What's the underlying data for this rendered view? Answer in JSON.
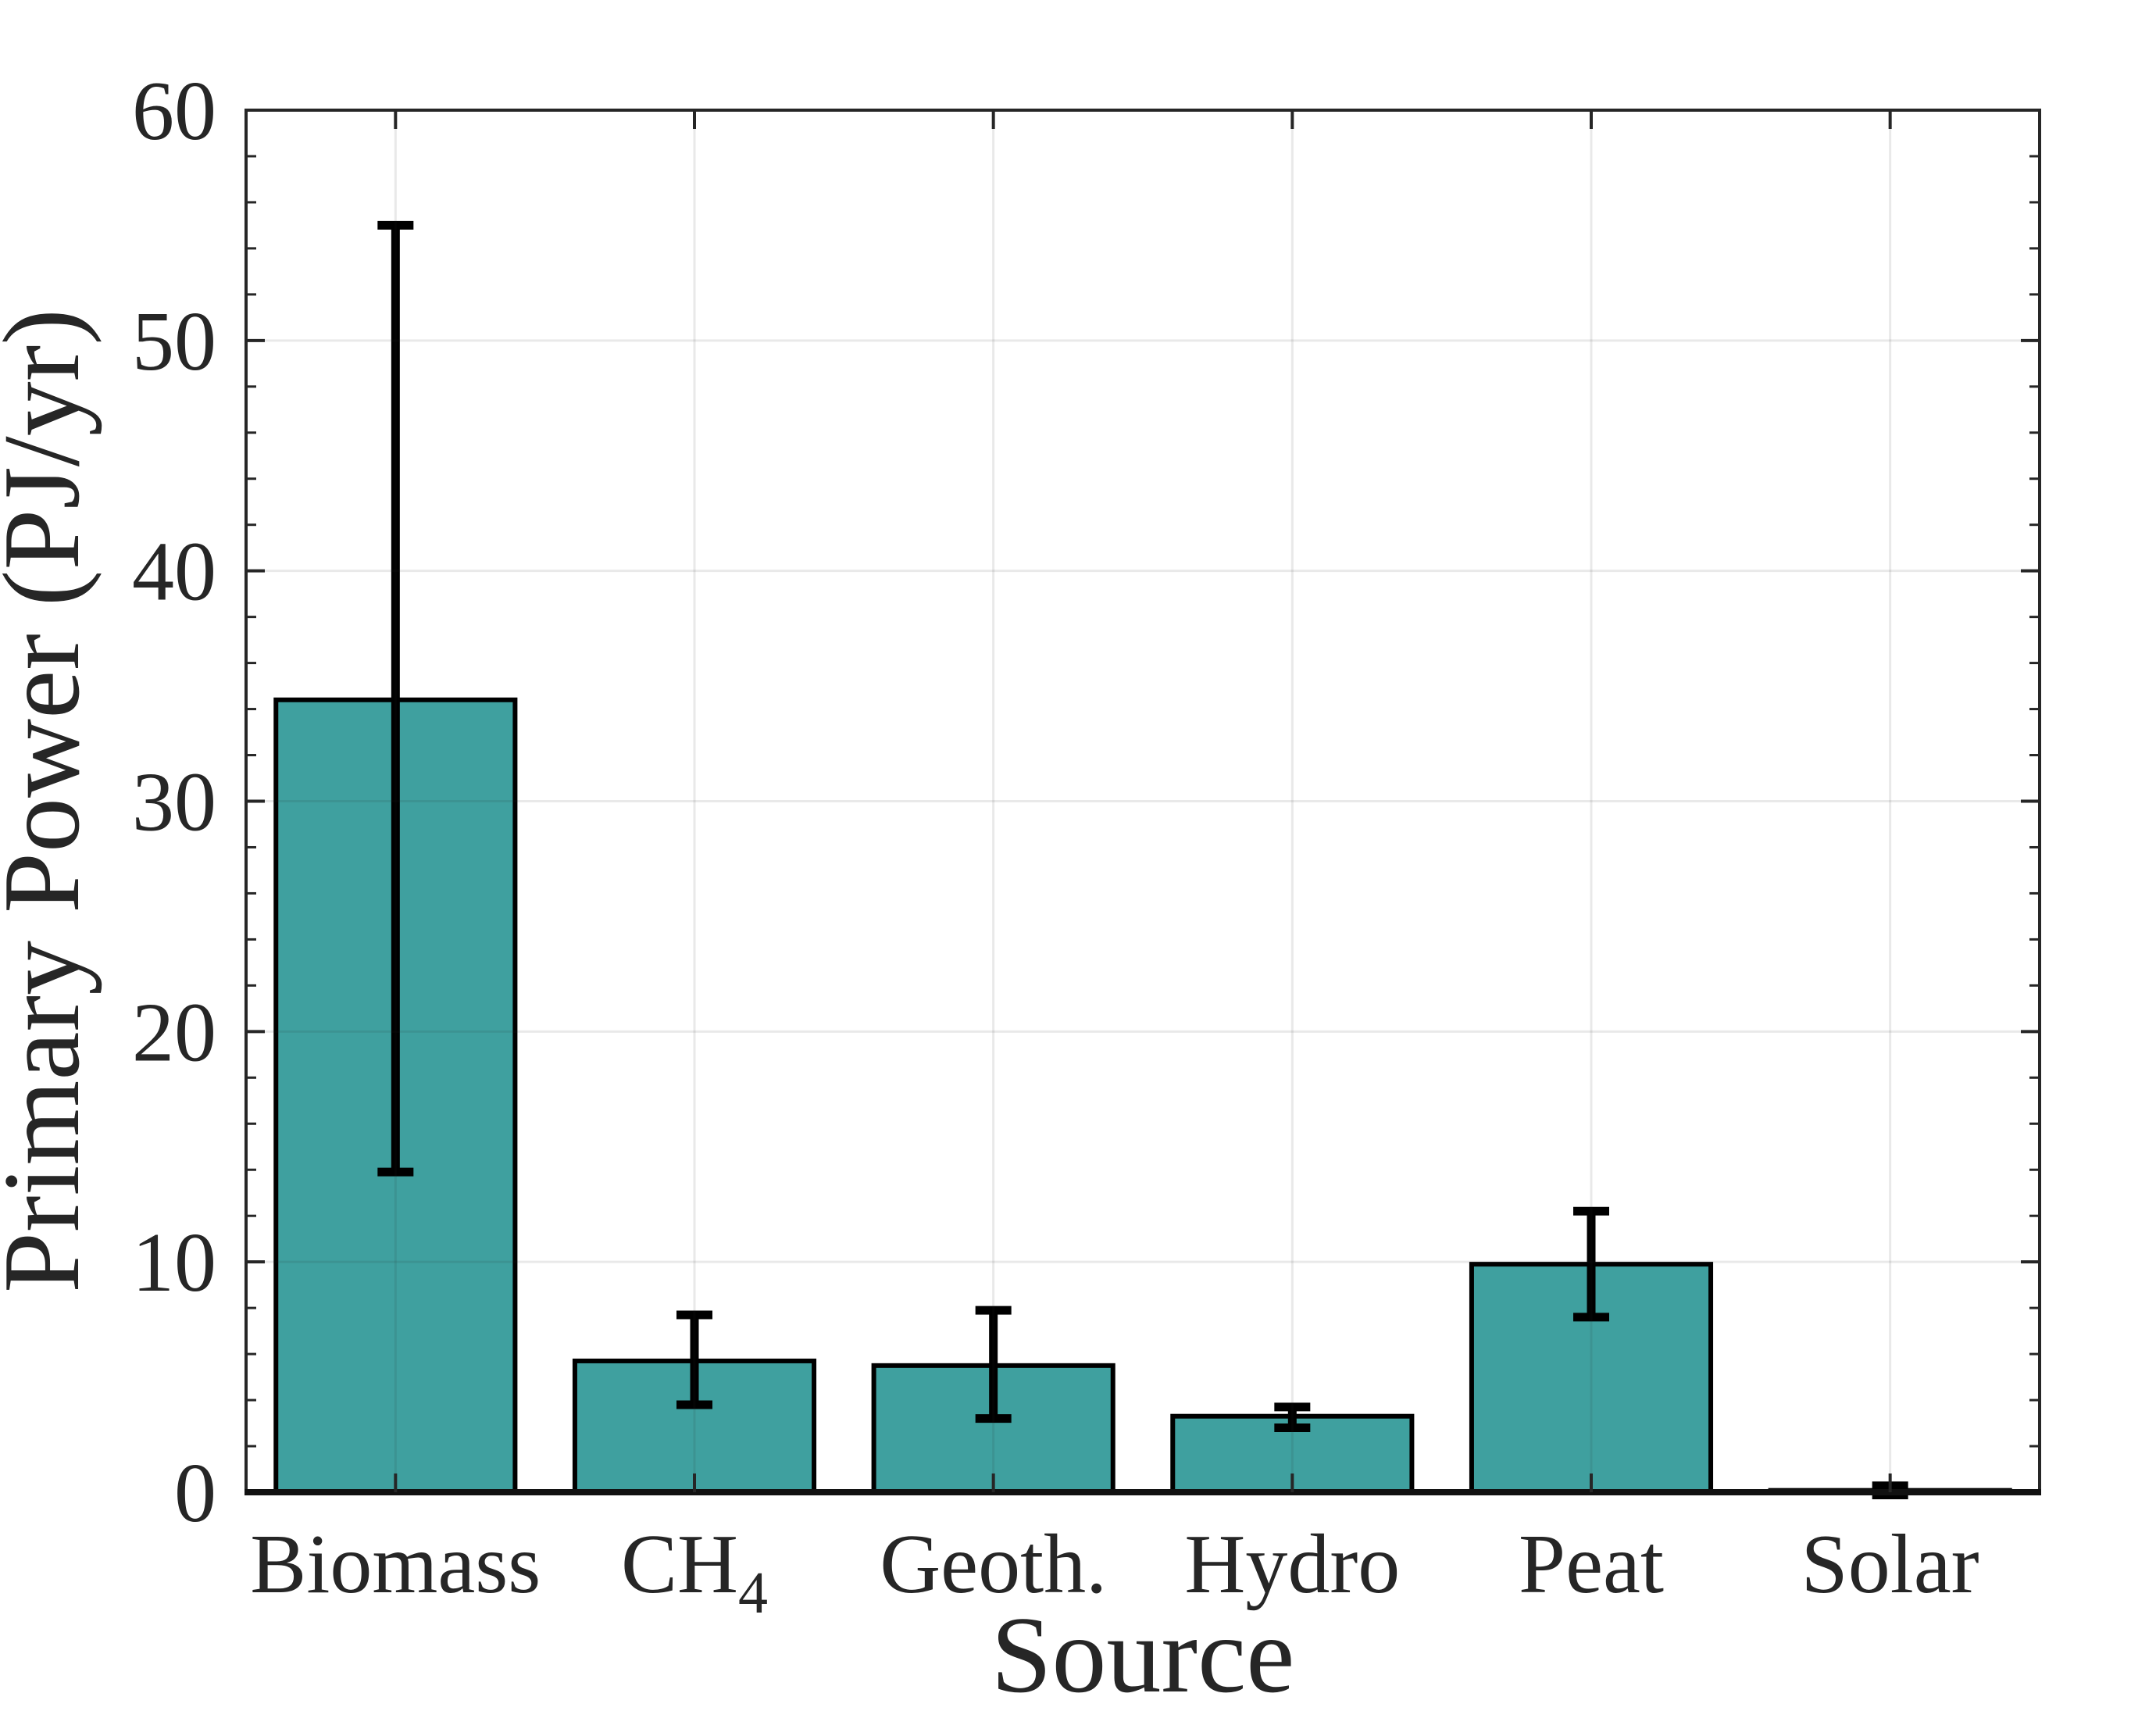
{
  "figure": {
    "background": "#FFFFFF"
  },
  "chart_data": {
    "type": "bar",
    "title": "",
    "xlabel": "Source",
    "ylabel": "Primary Power (PJ/yr)",
    "categories": [
      "Biomass",
      "CH4",
      "Geoth.",
      "Hydro",
      "Peat",
      "Solar"
    ],
    "category_label_parts": [
      [
        {
          "t": "Biomass",
          "sub": false
        }
      ],
      [
        {
          "t": "CH",
          "sub": false
        },
        {
          "t": "4",
          "sub": true
        }
      ],
      [
        {
          "t": "Geoth.",
          "sub": false
        }
      ],
      [
        {
          "t": "Hydro",
          "sub": false
        }
      ],
      [
        {
          "t": "Peat",
          "sub": false
        }
      ],
      [
        {
          "t": "Solar",
          "sub": false
        }
      ]
    ],
    "series": [
      {
        "name": "Primary Power",
        "values": [
          34.4,
          5.7,
          5.5,
          3.3,
          9.9,
          0.08
        ],
        "error_low": [
          13.9,
          3.8,
          3.2,
          2.8,
          7.6,
          -0.12
        ],
        "error_high": [
          55.0,
          7.7,
          7.9,
          3.7,
          12.2,
          0.28
        ]
      }
    ],
    "ylim": [
      0,
      60
    ],
    "yticks": [
      0,
      10,
      20,
      30,
      40,
      50,
      60
    ],
    "ytick_labels": [
      "0",
      "10",
      "20",
      "30",
      "40",
      "50",
      "60"
    ],
    "y_minor_step": 2,
    "grid": true,
    "grid_vertical": true,
    "legend": "none",
    "bar_relative_width": 0.8,
    "colors": {
      "bar_fill": "#3FA09F",
      "bar_edge": "#000000",
      "error_bar": "#000000",
      "axis": "#262626",
      "grid": "rgba(38,38,38,0.10)",
      "text": "#262626",
      "baseline": "#111111"
    }
  }
}
